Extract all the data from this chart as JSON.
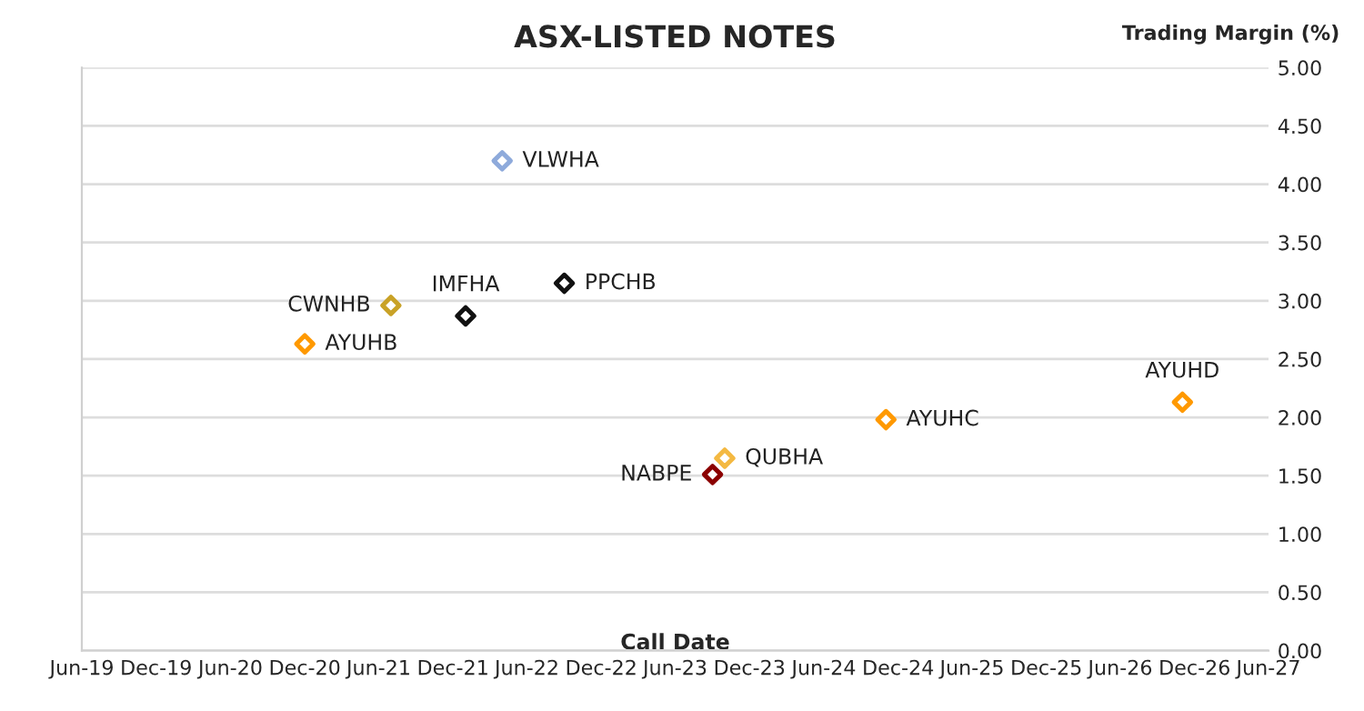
{
  "chart_data": {
    "type": "scatter",
    "title": "ASX-LISTED NOTES",
    "xlabel": "Call Date",
    "ylabel": "Trading Margin (%)",
    "marker": "diamond",
    "grid": "y",
    "legend": false,
    "xlim": [
      "2019-06",
      "2027-06"
    ],
    "xticks": [
      {
        "value": "2019-06",
        "label": "Jun-19"
      },
      {
        "value": "2019-12",
        "label": "Dec-19"
      },
      {
        "value": "2020-06",
        "label": "Jun-20"
      },
      {
        "value": "2020-12",
        "label": "Dec-20"
      },
      {
        "value": "2021-06",
        "label": "Jun-21"
      },
      {
        "value": "2021-12",
        "label": "Dec-21"
      },
      {
        "value": "2022-06",
        "label": "Jun-22"
      },
      {
        "value": "2022-12",
        "label": "Dec-22"
      },
      {
        "value": "2023-06",
        "label": "Jun-23"
      },
      {
        "value": "2023-12",
        "label": "Dec-23"
      },
      {
        "value": "2024-06",
        "label": "Jun-24"
      },
      {
        "value": "2024-12",
        "label": "Dec-24"
      },
      {
        "value": "2025-06",
        "label": "Jun-25"
      },
      {
        "value": "2025-12",
        "label": "Dec-25"
      },
      {
        "value": "2026-06",
        "label": "Jun-26"
      },
      {
        "value": "2026-12",
        "label": "Dec-26"
      },
      {
        "value": "2027-06",
        "label": "Jun-27"
      }
    ],
    "ylim": [
      0,
      5
    ],
    "yticks": [
      {
        "value": 0,
        "label": "0.00"
      },
      {
        "value": 0.5,
        "label": "0.50"
      },
      {
        "value": 1,
        "label": "1.00"
      },
      {
        "value": 1.5,
        "label": "1.50"
      },
      {
        "value": 2,
        "label": "2.00"
      },
      {
        "value": 2.5,
        "label": "2.50"
      },
      {
        "value": 3,
        "label": "3.00"
      },
      {
        "value": 3.5,
        "label": "3.50"
      },
      {
        "value": 4,
        "label": "4.00"
      },
      {
        "value": 4.5,
        "label": "4.50"
      },
      {
        "value": 5,
        "label": "5.00"
      }
    ],
    "series": [
      {
        "name": "VLWHA",
        "color": "#8eaadb",
        "x": [
          "2022-04"
        ],
        "values": [
          4.2
        ]
      },
      {
        "name": "CWNHB",
        "color": "#c9a227",
        "x": [
          "2021-07"
        ],
        "values": [
          2.96
        ]
      },
      {
        "name": "AYUHB",
        "color": "#ff9900",
        "x": [
          "2020-12"
        ],
        "values": [
          2.63
        ]
      },
      {
        "name": "IMFHA",
        "color": "#111111",
        "x": [
          "2022-01"
        ],
        "values": [
          2.87
        ]
      },
      {
        "name": "PPCHB",
        "color": "#111111",
        "x": [
          "2022-09"
        ],
        "values": [
          3.15
        ]
      },
      {
        "name": "NABPE",
        "color": "#8b0000",
        "x": [
          "2023-09"
        ],
        "values": [
          1.51
        ]
      },
      {
        "name": "QUBHA",
        "color": "#f4b942",
        "x": [
          "2023-10"
        ],
        "values": [
          1.65
        ]
      },
      {
        "name": "AYUHC",
        "color": "#ff9900",
        "x": [
          "2024-11"
        ],
        "values": [
          1.98
        ]
      },
      {
        "name": "AYUHD",
        "color": "#ff9900",
        "x": [
          "2026-11"
        ],
        "values": [
          2.13
        ]
      }
    ]
  }
}
